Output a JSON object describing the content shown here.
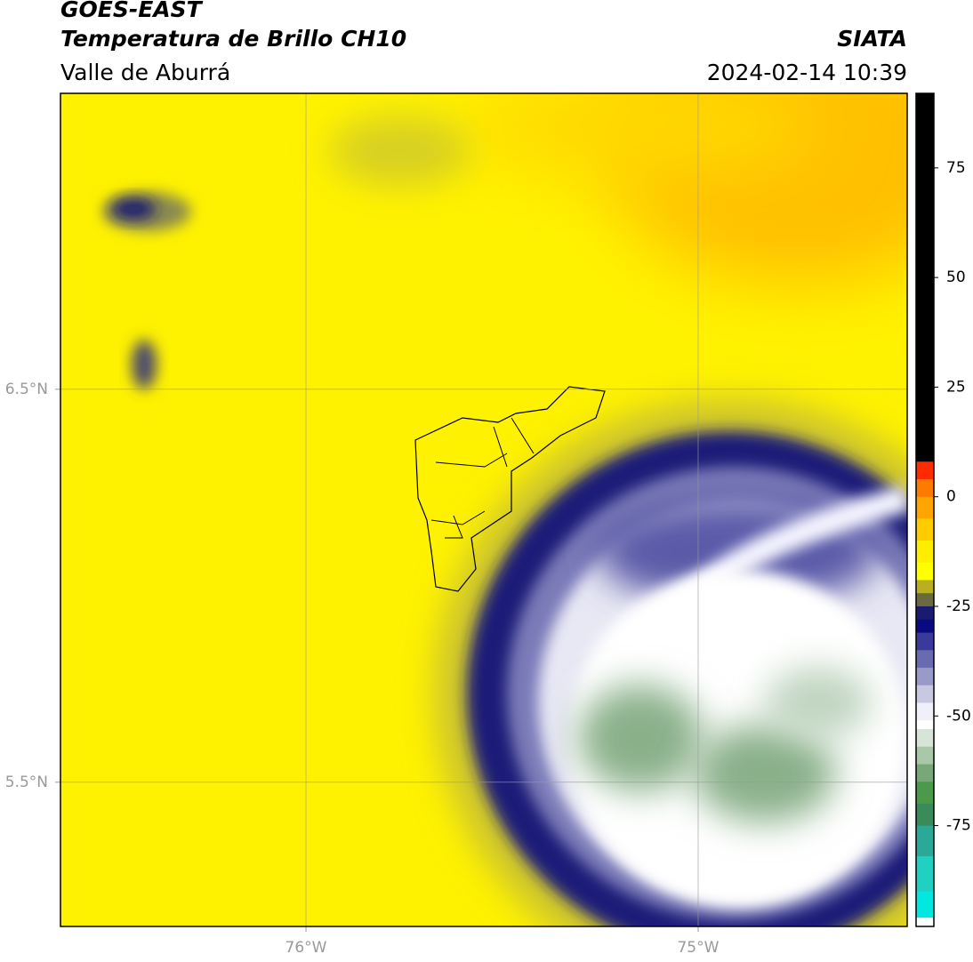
{
  "header": {
    "satellite": "GOES-EAST",
    "product": "Temperatura de Brillo CH10",
    "region": "Valle de Aburrá",
    "source": "SIATA",
    "datetime": "2024-02-14 10:39"
  },
  "map": {
    "xlim": [
      -76.626,
      -74.467
    ],
    "ylim": [
      5.133,
      7.253
    ],
    "xticks": [
      {
        "value": -76,
        "label": "76°W"
      },
      {
        "value": -75,
        "label": "75°W"
      }
    ],
    "yticks": [
      {
        "value": 6.5,
        "label": "6.5°N"
      },
      {
        "value": 5.5,
        "label": "5.5°N"
      }
    ],
    "grid": true
  },
  "colorbar": {
    "lim": [
      -98,
      92
    ],
    "ticks": [
      75,
      50,
      25,
      0,
      -25,
      -50,
      -75
    ],
    "stops": [
      {
        "value": 92,
        "color": "#000000"
      },
      {
        "value": 8,
        "color": "#ff2a00"
      },
      {
        "value": 4,
        "color": "#ff7a00"
      },
      {
        "value": 0,
        "color": "#ffa500"
      },
      {
        "value": -5,
        "color": "#ffcc00"
      },
      {
        "value": -10,
        "color": "#ffee00"
      },
      {
        "value": -15,
        "color": "#ffff00"
      },
      {
        "value": -19,
        "color": "#b8b020"
      },
      {
        "value": -22,
        "color": "#6a6a40"
      },
      {
        "value": -25,
        "color": "#1a1a70"
      },
      {
        "value": -28,
        "color": "#0a0a80"
      },
      {
        "value": -31,
        "color": "#3a3a9a"
      },
      {
        "value": -35,
        "color": "#6a6ab0"
      },
      {
        "value": -39,
        "color": "#9a9ac8"
      },
      {
        "value": -43,
        "color": "#c8c8e0"
      },
      {
        "value": -47,
        "color": "#f0f0f8"
      },
      {
        "value": -51,
        "color": "#ffffff"
      },
      {
        "value": -53,
        "color": "#d8e4d8"
      },
      {
        "value": -57,
        "color": "#a8c8a8"
      },
      {
        "value": -61,
        "color": "#78a878"
      },
      {
        "value": -65,
        "color": "#4a9a4a"
      },
      {
        "value": -70,
        "color": "#3a8a5a"
      },
      {
        "value": -75,
        "color": "#2aa898"
      },
      {
        "value": -82,
        "color": "#20d0c0"
      },
      {
        "value": -90,
        "color": "#00e8e0"
      },
      {
        "value": -96,
        "color": "#ffffff"
      }
    ]
  }
}
